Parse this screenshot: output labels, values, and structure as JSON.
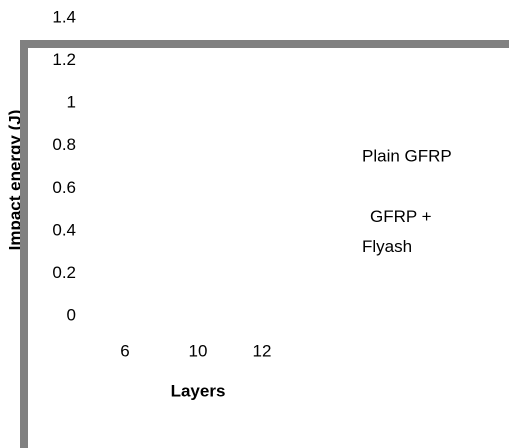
{
  "chart_data": {
    "type": "bar",
    "y_label": "Impact energy (J)",
    "x_label": "Layers",
    "categories": [
      "6",
      "10",
      "12"
    ],
    "series": [
      {
        "name": "Plain GFRP",
        "values": [
          null,
          null,
          null
        ]
      },
      {
        "name": "GFRP + Flyash",
        "values": [
          null,
          null,
          null
        ]
      }
    ],
    "ylim": [
      0,
      1.4
    ],
    "yticks": [
      0,
      0.2,
      0.4,
      0.6,
      0.8,
      1,
      1.2,
      1.4
    ]
  }
}
